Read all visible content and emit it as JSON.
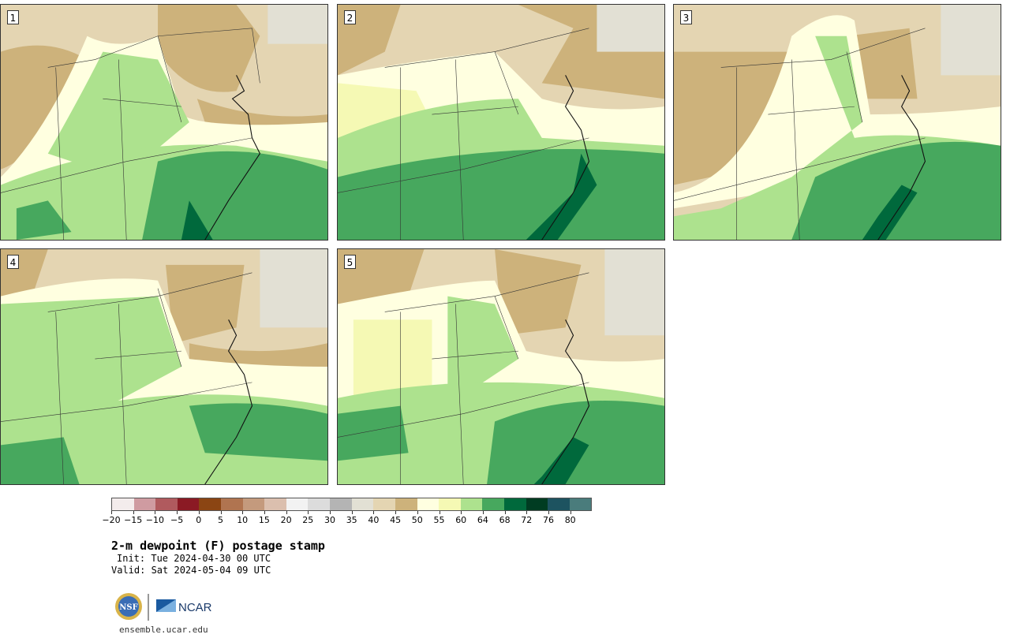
{
  "panels": [
    {
      "label": "1"
    },
    {
      "label": "2"
    },
    {
      "label": "3"
    },
    {
      "label": "4"
    },
    {
      "label": "5"
    }
  ],
  "colorbar": {
    "colors": [
      "#f3ecec",
      "#cf9ba1",
      "#b05a5e",
      "#8b1a24",
      "#8b4513",
      "#b07450",
      "#c49a7d",
      "#dbbfae",
      "#f2f2f2",
      "#dcdcdc",
      "#b4b4b4",
      "#e2e0d4",
      "#e4d5b2",
      "#cdb27b",
      "#ffffe0",
      "#f5f9b4",
      "#ade28e",
      "#47a85e",
      "#00693c",
      "#003c22",
      "#1d5360",
      "#4a7c7c"
    ],
    "ticks": [
      "−20",
      "−15",
      "−10",
      "−5",
      "0",
      "5",
      "10",
      "15",
      "20",
      "25",
      "30",
      "35",
      "40",
      "45",
      "50",
      "55",
      "60",
      "64",
      "68",
      "72",
      "76",
      "80"
    ]
  },
  "title": "2-m dewpoint (F) postage stamp",
  "init": "Init: Tue 2024-04-30 00 UTC",
  "valid": "Valid: Sat 2024-05-04 09 UTC",
  "logos": {
    "nsf": "NSF",
    "ncar": "NCAR"
  },
  "site": "ensemble.ucar.edu"
}
